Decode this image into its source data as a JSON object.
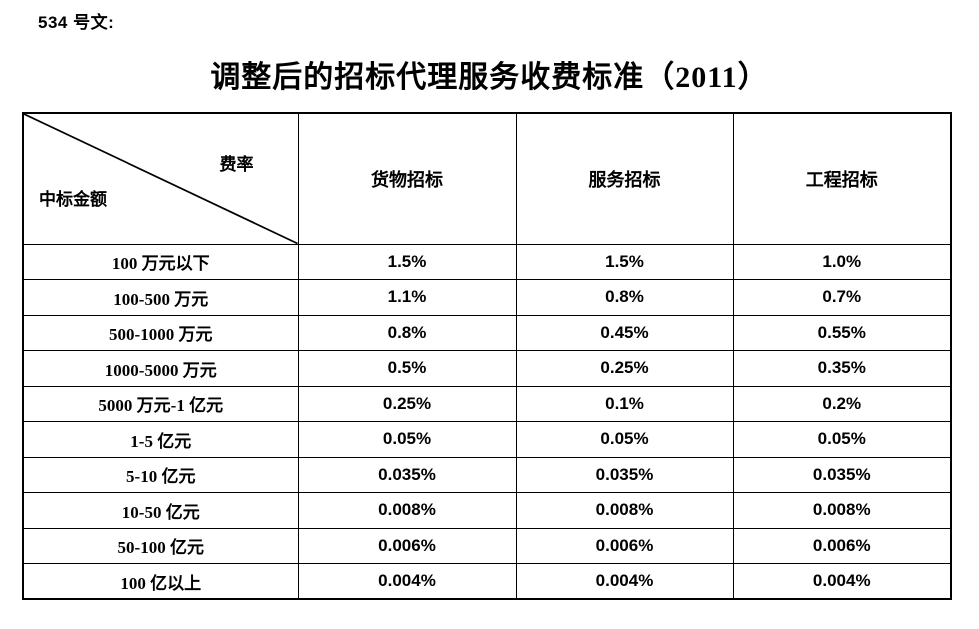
{
  "doc": {
    "ref_label": "534 号文:",
    "title": "调整后的招标代理服务收费标准（2011）"
  },
  "table": {
    "corner": {
      "top_right": "费率",
      "bottom_left": "中标金额"
    },
    "columns": [
      "货物招标",
      "服务招标",
      "工程招标"
    ],
    "rows": [
      {
        "label": "100 万元以下",
        "values": [
          "1.5%",
          "1.5%",
          "1.0%"
        ]
      },
      {
        "label": "100-500 万元",
        "values": [
          "1.1%",
          "0.8%",
          "0.7%"
        ]
      },
      {
        "label": "500-1000 万元",
        "values": [
          "0.8%",
          "0.45%",
          "0.55%"
        ]
      },
      {
        "label": "1000-5000 万元",
        "values": [
          "0.5%",
          "0.25%",
          "0.35%"
        ]
      },
      {
        "label": "5000 万元-1 亿元",
        "values": [
          "0.25%",
          "0.1%",
          "0.2%"
        ]
      },
      {
        "label": "1-5 亿元",
        "values": [
          "0.05%",
          "0.05%",
          "0.05%"
        ]
      },
      {
        "label": "5-10 亿元",
        "values": [
          "0.035%",
          "0.035%",
          "0.035%"
        ]
      },
      {
        "label": "10-50 亿元",
        "values": [
          "0.008%",
          "0.008%",
          "0.008%"
        ]
      },
      {
        "label": "50-100 亿元",
        "values": [
          "0.006%",
          "0.006%",
          "0.006%"
        ]
      },
      {
        "label": "100 亿以上",
        "values": [
          "0.004%",
          "0.004%",
          "0.004%"
        ]
      }
    ],
    "colors": {
      "text": "#000000",
      "border": "#000000",
      "background": "#ffffff"
    }
  }
}
